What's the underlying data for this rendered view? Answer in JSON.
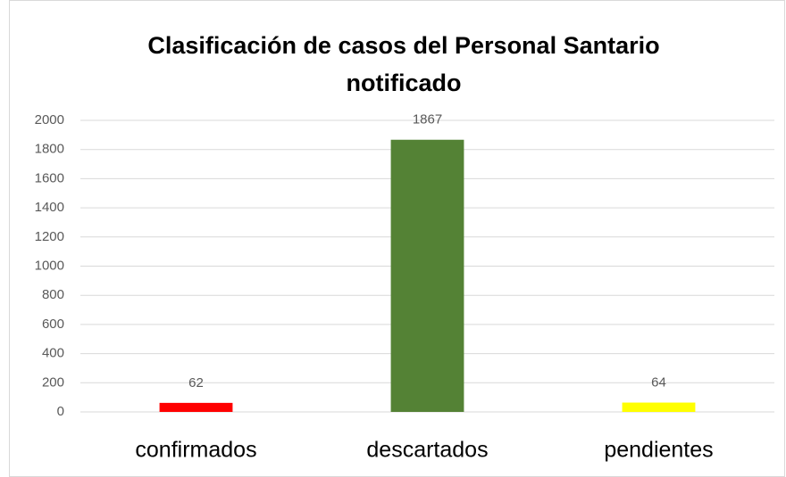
{
  "chart_data": {
    "type": "bar",
    "title": "Clasificación de casos del Personal Santario notificado",
    "categories": [
      "confirmados",
      "descartados",
      "pendientes"
    ],
    "values": [
      62,
      1867,
      64
    ],
    "colors": [
      "#ff0000",
      "#548235",
      "#ffff00"
    ],
    "ylim": [
      0,
      2000
    ],
    "yticks": [
      0,
      200,
      400,
      600,
      800,
      1000,
      1200,
      1400,
      1600,
      1800,
      2000
    ],
    "grid": true
  }
}
